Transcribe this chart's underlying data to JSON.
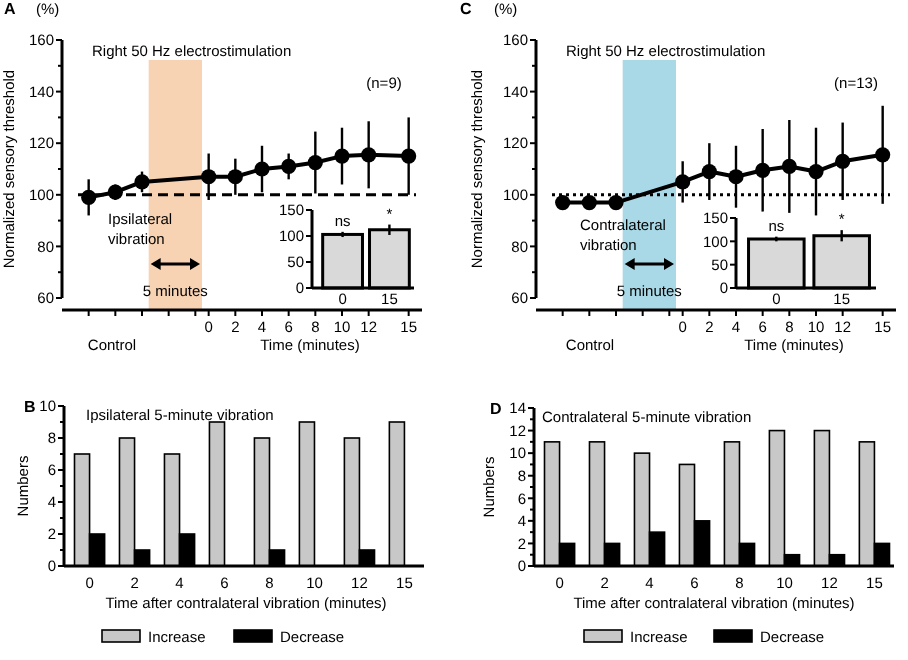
{
  "chart_data": [
    {
      "type": "line",
      "title": "Right 50 Hz electrostimulation",
      "xlabel": "Time (minutes)",
      "ylabel": "Normalized sensory threshold",
      "annotations": [
        "A",
        "(%)",
        "(n=9)",
        "Ipsilateral vibration",
        "5 minutes",
        "Control"
      ],
      "x": [
        -9,
        -7,
        -5,
        0,
        2,
        4,
        6,
        8,
        10,
        12,
        15
      ],
      "xlim": [
        -11,
        16
      ],
      "xticks": [
        {
          "value": -9,
          "label": null
        },
        {
          "value": -7,
          "label": null
        },
        {
          "value": -5,
          "label": null
        },
        {
          "value": -3,
          "label": null
        },
        {
          "value": -1,
          "label": null
        },
        0,
        2,
        4,
        6,
        8,
        10,
        12,
        15
      ],
      "ylim": [
        60,
        160
      ],
      "yticks": [
        60,
        {
          "value": 70,
          "label": null
        },
        80,
        {
          "value": 90,
          "label": null
        },
        100,
        {
          "value": 110,
          "label": null
        },
        120,
        {
          "value": 130,
          "label": null
        },
        140,
        {
          "value": 150,
          "label": null
        },
        160
      ],
      "series": [
        {
          "color": "#000000",
          "values": [
            99,
            101,
            105,
            107,
            107,
            110,
            111,
            112.5,
            115,
            115.5,
            115
          ],
          "errors": [
            7,
            3,
            4,
            9,
            7,
            9,
            5,
            12,
            11,
            13,
            15
          ]
        }
      ],
      "marker": "circle",
      "line_style": "solid",
      "ref_lines": [
        {
          "axis": "y",
          "value": 100,
          "line_style": "dashed",
          "color": "#000000"
        }
      ],
      "bands": [
        {
          "axis": "x",
          "from": -4.5,
          "to": -0.5,
          "color": "#f8d3b3"
        }
      ]
    },
    {
      "type": "bar",
      "categories": [
        "0",
        "15"
      ],
      "values": [
        103,
        112
      ],
      "errors": [
        5,
        10
      ],
      "color": "#d9d9d9",
      "ylim": [
        0,
        150
      ],
      "yticks": [
        0,
        50,
        100,
        150
      ],
      "annotations": [
        "ns",
        "*"
      ]
    },
    {
      "type": "line",
      "title": "Right 50 Hz electrostimulation",
      "xlabel": "Time (minutes)",
      "ylabel": "Normalized sensory threshold",
      "annotations": [
        "C",
        "(%)",
        "(n=13)",
        "Contralateral vibration",
        "5 minutes",
        "Control"
      ],
      "x": [
        -9,
        -7,
        -5,
        0,
        2,
        4,
        6,
        8,
        10,
        12,
        15
      ],
      "xlim": [
        -11,
        16
      ],
      "xticks": [
        {
          "value": -9,
          "label": null
        },
        {
          "value": -7,
          "label": null
        },
        {
          "value": -5,
          "label": null
        },
        {
          "value": -3,
          "label": null
        },
        {
          "value": -1,
          "label": null
        },
        0,
        2,
        4,
        6,
        8,
        10,
        12,
        15
      ],
      "ylim": [
        60,
        160
      ],
      "yticks": [
        60,
        {
          "value": 70,
          "label": null
        },
        80,
        {
          "value": 90,
          "label": null
        },
        100,
        {
          "value": 110,
          "label": null
        },
        120,
        {
          "value": 130,
          "label": null
        },
        140,
        {
          "value": 150,
          "label": null
        },
        160
      ],
      "series": [
        {
          "color": "#000000",
          "values": [
            97,
            97,
            97,
            105,
            109,
            107,
            109.5,
            111,
            109,
            113,
            115.5
          ],
          "errors": [
            null,
            null,
            null,
            8,
            11,
            12,
            16,
            18,
            17,
            15,
            19
          ]
        }
      ],
      "marker": "circle",
      "line_style": "solid",
      "ref_lines": [
        {
          "axis": "y",
          "value": 100,
          "line_style": "dotted",
          "color": "#000000"
        }
      ],
      "bands": [
        {
          "axis": "x",
          "from": -4.5,
          "to": -0.5,
          "color": "#a9d9e6"
        }
      ]
    },
    {
      "type": "bar",
      "categories": [
        "0",
        "15"
      ],
      "values": [
        105,
        112
      ],
      "errors": [
        5,
        12
      ],
      "color": "#d9d9d9",
      "ylim": [
        0,
        150
      ],
      "yticks": [
        0,
        50,
        100,
        150
      ],
      "annotations": [
        "ns",
        "*"
      ]
    },
    {
      "type": "bar",
      "title": "Ipsilateral 5-minute vibration",
      "xlabel": "Time after contralateral vibration (minutes)",
      "ylabel": "Numbers",
      "annotations": [
        "B"
      ],
      "categories": [
        "0",
        "2",
        "4",
        "6",
        "8",
        "10",
        "12",
        "15"
      ],
      "series": [
        {
          "name": "Increase",
          "color": "#c8c8c8",
          "values": [
            7,
            8,
            7,
            9,
            8,
            9,
            8,
            9
          ]
        },
        {
          "name": "Decrease",
          "color": "#000000",
          "values": [
            2,
            1,
            2,
            0,
            1,
            0,
            1,
            0
          ]
        }
      ],
      "ylim": [
        0,
        10
      ],
      "yticks": [
        0,
        {
          "value": 1,
          "label": null
        },
        2,
        {
          "value": 3,
          "label": null
        },
        4,
        {
          "value": 5,
          "label": null
        },
        6,
        {
          "value": 7,
          "label": null
        },
        8,
        {
          "value": 9,
          "label": null
        },
        10
      ],
      "legend": "bottom"
    },
    {
      "type": "bar",
      "title": "Contralateral 5-minute vibration",
      "xlabel": "Time after contralateral vibration (minutes)",
      "ylabel": "Numbers",
      "annotations": [
        "D"
      ],
      "categories": [
        "0",
        "2",
        "4",
        "6",
        "8",
        "10",
        "12",
        "15"
      ],
      "series": [
        {
          "name": "Increase",
          "color": "#c8c8c8",
          "values": [
            11,
            11,
            10,
            9,
            11,
            12,
            12,
            11
          ]
        },
        {
          "name": "Decrease",
          "color": "#000000",
          "values": [
            2,
            2,
            3,
            4,
            2,
            1,
            1,
            2
          ]
        }
      ],
      "ylim": [
        0,
        14
      ],
      "yticks": [
        0,
        {
          "value": 1,
          "label": null
        },
        2,
        {
          "value": 3,
          "label": null
        },
        4,
        {
          "value": 5,
          "label": null
        },
        6,
        {
          "value": 7,
          "label": null
        },
        8,
        {
          "value": 9,
          "label": null
        },
        10,
        {
          "value": 11,
          "label": null
        },
        12,
        {
          "value": 13,
          "label": null
        },
        14
      ],
      "legend": "bottom"
    }
  ]
}
